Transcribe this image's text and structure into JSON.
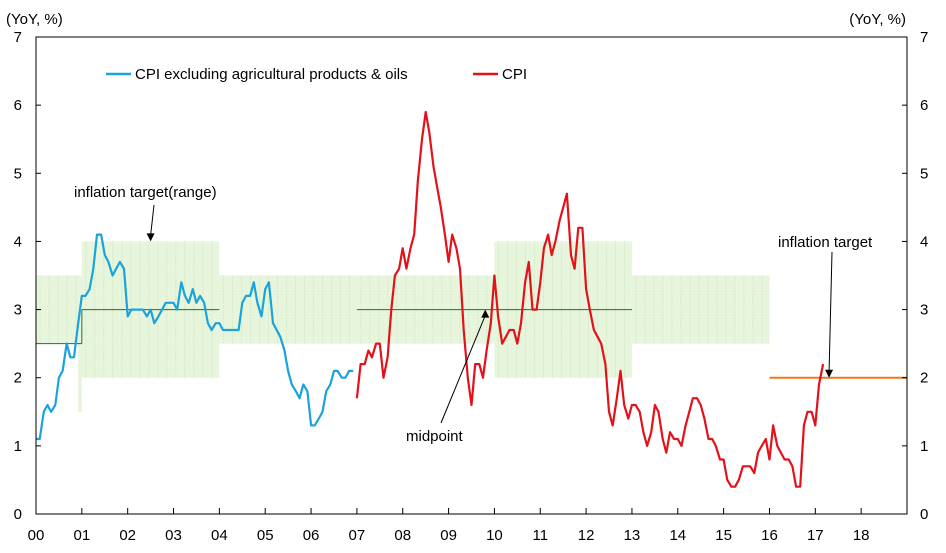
{
  "chart_data": {
    "type": "line",
    "units": {
      "left": "(YoY, %)",
      "right": "(YoY, %)"
    },
    "x_ticks": [
      "00",
      "01",
      "02",
      "03",
      "04",
      "05",
      "06",
      "07",
      "08",
      "09",
      "10",
      "11",
      "12",
      "13",
      "14",
      "15",
      "16",
      "17",
      "18"
    ],
    "xlim": [
      2000,
      2019
    ],
    "ylim": [
      0,
      7
    ],
    "y_ticks": [
      0,
      1,
      2,
      3,
      4,
      5,
      6,
      7
    ],
    "grid": false,
    "legend": {
      "placement": "top-left"
    },
    "series": [
      {
        "name": "CPI excluding agricultural products & oils",
        "color": "#1aa3dd",
        "points": [
          [
            2000.0,
            1.1
          ],
          [
            2000.08,
            1.1
          ],
          [
            2000.17,
            1.5
          ],
          [
            2000.25,
            1.6
          ],
          [
            2000.33,
            1.5
          ],
          [
            2000.42,
            1.6
          ],
          [
            2000.5,
            2.0
          ],
          [
            2000.58,
            2.1
          ],
          [
            2000.67,
            2.5
          ],
          [
            2000.75,
            2.3
          ],
          [
            2000.83,
            2.3
          ],
          [
            2000.92,
            2.8
          ],
          [
            2001.0,
            3.2
          ],
          [
            2001.08,
            3.2
          ],
          [
            2001.17,
            3.3
          ],
          [
            2001.25,
            3.6
          ],
          [
            2001.33,
            4.1
          ],
          [
            2001.42,
            4.1
          ],
          [
            2001.5,
            3.8
          ],
          [
            2001.58,
            3.7
          ],
          [
            2001.67,
            3.5
          ],
          [
            2001.75,
            3.6
          ],
          [
            2001.83,
            3.7
          ],
          [
            2001.92,
            3.6
          ],
          [
            2002.0,
            2.9
          ],
          [
            2002.08,
            3.0
          ],
          [
            2002.17,
            3.0
          ],
          [
            2002.25,
            3.0
          ],
          [
            2002.33,
            3.0
          ],
          [
            2002.42,
            2.9
          ],
          [
            2002.5,
            3.0
          ],
          [
            2002.58,
            2.8
          ],
          [
            2002.67,
            2.9
          ],
          [
            2002.75,
            3.0
          ],
          [
            2002.83,
            3.1
          ],
          [
            2002.92,
            3.1
          ],
          [
            2003.0,
            3.1
          ],
          [
            2003.08,
            3.0
          ],
          [
            2003.17,
            3.4
          ],
          [
            2003.25,
            3.2
          ],
          [
            2003.33,
            3.1
          ],
          [
            2003.42,
            3.3
          ],
          [
            2003.5,
            3.1
          ],
          [
            2003.58,
            3.2
          ],
          [
            2003.67,
            3.1
          ],
          [
            2003.75,
            2.8
          ],
          [
            2003.83,
            2.7
          ],
          [
            2003.92,
            2.8
          ],
          [
            2004.0,
            2.8
          ],
          [
            2004.08,
            2.7
          ],
          [
            2004.17,
            2.7
          ],
          [
            2004.25,
            2.7
          ],
          [
            2004.33,
            2.7
          ],
          [
            2004.42,
            2.7
          ],
          [
            2004.5,
            3.1
          ],
          [
            2004.58,
            3.2
          ],
          [
            2004.67,
            3.2
          ],
          [
            2004.75,
            3.4
          ],
          [
            2004.83,
            3.1
          ],
          [
            2004.92,
            2.9
          ],
          [
            2005.0,
            3.3
          ],
          [
            2005.08,
            3.4
          ],
          [
            2005.17,
            2.8
          ],
          [
            2005.25,
            2.7
          ],
          [
            2005.33,
            2.6
          ],
          [
            2005.42,
            2.4
          ],
          [
            2005.5,
            2.1
          ],
          [
            2005.58,
            1.9
          ],
          [
            2005.67,
            1.8
          ],
          [
            2005.75,
            1.7
          ],
          [
            2005.83,
            1.9
          ],
          [
            2005.92,
            1.8
          ],
          [
            2006.0,
            1.3
          ],
          [
            2006.08,
            1.3
          ],
          [
            2006.17,
            1.4
          ],
          [
            2006.25,
            1.5
          ],
          [
            2006.33,
            1.8
          ],
          [
            2006.42,
            1.9
          ],
          [
            2006.5,
            2.1
          ],
          [
            2006.58,
            2.1
          ],
          [
            2006.67,
            2.0
          ],
          [
            2006.75,
            2.0
          ],
          [
            2006.83,
            2.1
          ],
          [
            2006.92,
            2.1
          ]
        ]
      },
      {
        "name": "CPI",
        "color": "#e3121a",
        "points": [
          [
            2007.0,
            1.7
          ],
          [
            2007.08,
            2.2
          ],
          [
            2007.17,
            2.2
          ],
          [
            2007.25,
            2.4
          ],
          [
            2007.33,
            2.3
          ],
          [
            2007.42,
            2.5
          ],
          [
            2007.5,
            2.5
          ],
          [
            2007.58,
            2.0
          ],
          [
            2007.67,
            2.3
          ],
          [
            2007.75,
            3.0
          ],
          [
            2007.83,
            3.5
          ],
          [
            2007.92,
            3.6
          ],
          [
            2008.0,
            3.9
          ],
          [
            2008.08,
            3.6
          ],
          [
            2008.17,
            3.9
          ],
          [
            2008.25,
            4.1
          ],
          [
            2008.33,
            4.9
          ],
          [
            2008.42,
            5.5
          ],
          [
            2008.5,
            5.9
          ],
          [
            2008.58,
            5.6
          ],
          [
            2008.67,
            5.1
          ],
          [
            2008.75,
            4.8
          ],
          [
            2008.83,
            4.5
          ],
          [
            2008.92,
            4.1
          ],
          [
            2009.0,
            3.7
          ],
          [
            2009.08,
            4.1
          ],
          [
            2009.17,
            3.9
          ],
          [
            2009.25,
            3.6
          ],
          [
            2009.33,
            2.7
          ],
          [
            2009.42,
            2.0
          ],
          [
            2009.5,
            1.6
          ],
          [
            2009.58,
            2.2
          ],
          [
            2009.67,
            2.2
          ],
          [
            2009.75,
            2.0
          ],
          [
            2009.83,
            2.4
          ],
          [
            2009.92,
            2.8
          ],
          [
            2010.0,
            3.5
          ],
          [
            2010.08,
            2.9
          ],
          [
            2010.17,
            2.5
          ],
          [
            2010.25,
            2.6
          ],
          [
            2010.33,
            2.7
          ],
          [
            2010.42,
            2.7
          ],
          [
            2010.5,
            2.5
          ],
          [
            2010.58,
            2.8
          ],
          [
            2010.67,
            3.4
          ],
          [
            2010.75,
            3.7
          ],
          [
            2010.83,
            3.0
          ],
          [
            2010.92,
            3.0
          ],
          [
            2011.0,
            3.4
          ],
          [
            2011.08,
            3.9
          ],
          [
            2011.17,
            4.1
          ],
          [
            2011.25,
            3.8
          ],
          [
            2011.33,
            4.0
          ],
          [
            2011.42,
            4.3
          ],
          [
            2011.5,
            4.5
          ],
          [
            2011.58,
            4.7
          ],
          [
            2011.67,
            3.8
          ],
          [
            2011.75,
            3.6
          ],
          [
            2011.83,
            4.2
          ],
          [
            2011.92,
            4.2
          ],
          [
            2012.0,
            3.3
          ],
          [
            2012.08,
            3.0
          ],
          [
            2012.17,
            2.7
          ],
          [
            2012.25,
            2.6
          ],
          [
            2012.33,
            2.5
          ],
          [
            2012.42,
            2.2
          ],
          [
            2012.5,
            1.5
          ],
          [
            2012.58,
            1.3
          ],
          [
            2012.67,
            1.7
          ],
          [
            2012.75,
            2.1
          ],
          [
            2012.83,
            1.6
          ],
          [
            2012.92,
            1.4
          ],
          [
            2013.0,
            1.6
          ],
          [
            2013.08,
            1.6
          ],
          [
            2013.17,
            1.5
          ],
          [
            2013.25,
            1.2
          ],
          [
            2013.33,
            1.0
          ],
          [
            2013.42,
            1.2
          ],
          [
            2013.5,
            1.6
          ],
          [
            2013.58,
            1.5
          ],
          [
            2013.67,
            1.1
          ],
          [
            2013.75,
            0.9
          ],
          [
            2013.83,
            1.2
          ],
          [
            2013.92,
            1.1
          ],
          [
            2014.0,
            1.1
          ],
          [
            2014.08,
            1.0
          ],
          [
            2014.17,
            1.3
          ],
          [
            2014.25,
            1.5
          ],
          [
            2014.33,
            1.7
          ],
          [
            2014.42,
            1.7
          ],
          [
            2014.5,
            1.6
          ],
          [
            2014.58,
            1.4
          ],
          [
            2014.67,
            1.1
          ],
          [
            2014.75,
            1.1
          ],
          [
            2014.83,
            1.0
          ],
          [
            2014.92,
            0.8
          ],
          [
            2015.0,
            0.8
          ],
          [
            2015.08,
            0.5
          ],
          [
            2015.17,
            0.4
          ],
          [
            2015.25,
            0.4
          ],
          [
            2015.33,
            0.5
          ],
          [
            2015.42,
            0.7
          ],
          [
            2015.5,
            0.7
          ],
          [
            2015.58,
            0.7
          ],
          [
            2015.67,
            0.6
          ],
          [
            2015.75,
            0.9
          ],
          [
            2015.83,
            1.0
          ],
          [
            2015.92,
            1.1
          ],
          [
            2016.0,
            0.8
          ],
          [
            2016.08,
            1.3
          ],
          [
            2016.17,
            1.0
          ],
          [
            2016.25,
            0.9
          ],
          [
            2016.33,
            0.8
          ],
          [
            2016.42,
            0.8
          ],
          [
            2016.5,
            0.7
          ],
          [
            2016.58,
            0.4
          ],
          [
            2016.67,
            0.4
          ],
          [
            2016.75,
            1.3
          ],
          [
            2016.83,
            1.5
          ],
          [
            2016.92,
            1.5
          ],
          [
            2017.0,
            1.3
          ],
          [
            2017.08,
            1.9
          ],
          [
            2017.17,
            2.2
          ]
        ]
      }
    ],
    "target_bands": [
      {
        "x": [
          2000.0,
          2000.92
        ],
        "y": [
          2.5,
          3.5
        ],
        "color": "#e6f5dc"
      },
      {
        "x": [
          2000.92,
          2001.0
        ],
        "y": [
          1.5,
          3.5
        ],
        "color": "#e6f5dc"
      },
      {
        "x": [
          2001.0,
          2004.0
        ],
        "y": [
          2.0,
          4.0
        ],
        "color": "#e6f5dc"
      },
      {
        "x": [
          2004.0,
          2007.0
        ],
        "y": [
          2.5,
          3.5
        ],
        "color": "#e6f5dc"
      },
      {
        "x": [
          2007.0,
          2010.0
        ],
        "y": [
          2.5,
          3.5
        ],
        "color": "#e6f5dc"
      },
      {
        "x": [
          2010.0,
          2013.0
        ],
        "y": [
          2.0,
          4.0
        ],
        "color": "#e6f5dc"
      },
      {
        "x": [
          2013.0,
          2016.0
        ],
        "y": [
          2.5,
          3.5
        ],
        "color": "#e6f5dc"
      }
    ],
    "target_lines": [
      {
        "x": [
          2000.0,
          2001.0
        ],
        "y": 2.5,
        "color": "#2f6b2f"
      },
      {
        "x": [
          2001.0,
          2004.0
        ],
        "y": 3.0,
        "color": "#2f6b2f"
      },
      {
        "x": [
          2007.0,
          2013.0
        ],
        "y": 3.0,
        "color": "#2f6b2f"
      },
      {
        "x": [
          2016.0,
          2019.0
        ],
        "y": 2.0,
        "color": "#ee7a1e"
      }
    ],
    "annotations": [
      {
        "text": "inflation target(range)",
        "arrow_to": [
          2002.5,
          4.0
        ]
      },
      {
        "text": "midpoint",
        "arrow_to": [
          2009.8,
          3.0
        ]
      },
      {
        "text": "inflation target",
        "arrow_to": [
          2017.3,
          2.0
        ]
      }
    ]
  }
}
